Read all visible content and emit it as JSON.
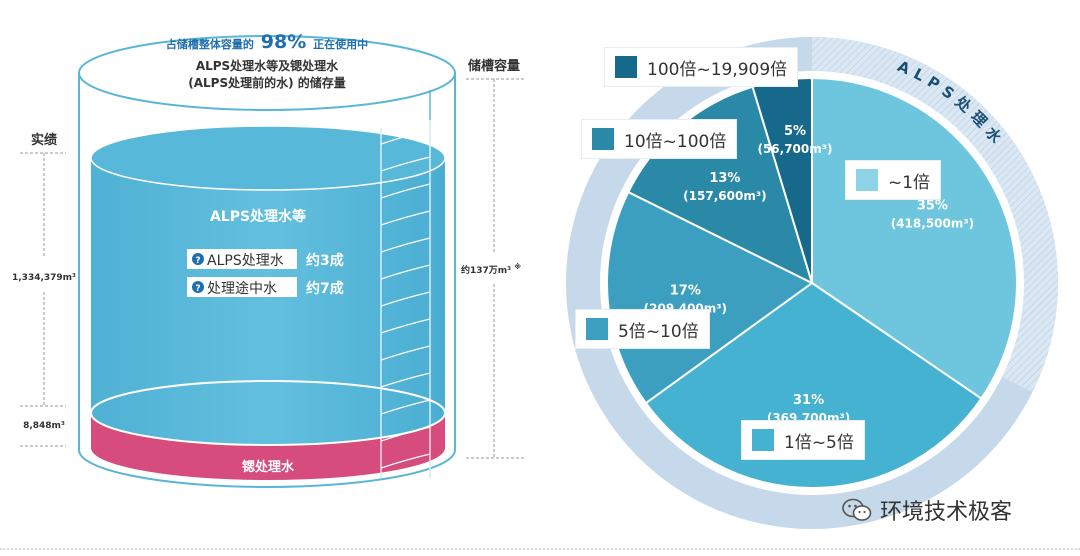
{
  "tank": {
    "header_line1_prefix": "占储槽整体容量的",
    "header_percent": "98%",
    "header_line1_suffix": "正在使用中",
    "header_line2": "ALPS处理水等及锶处理水",
    "header_line3": "(ALPS处理前的水) 的储存量",
    "capacity_label": "储槽容量",
    "capacity_value": "约137万m³",
    "capacity_note": "※",
    "actual_label": "实绩",
    "alps_volume": "1,334,379m³",
    "strontium_volume": "8,848m³",
    "water_title": "ALPS处理水等",
    "items": [
      {
        "label": "ALPS处理水",
        "amount": "约3成"
      },
      {
        "label": "处理途中水",
        "amount": "约7成"
      }
    ],
    "strontium_label": "锶处理水"
  },
  "chart_data": {
    "type": "pie",
    "title": "",
    "ring_label": "ALPS处理水",
    "slices": [
      {
        "legend": "~1倍",
        "percent": "35%",
        "volume": "(418,500m³)",
        "value": 418500,
        "color": "#6ec6de"
      },
      {
        "legend": "1倍~5倍",
        "percent": "31%",
        "volume": "(369,700m³)",
        "value": 369700,
        "color": "#45b2d2"
      },
      {
        "legend": "5倍~10倍",
        "percent": "17%",
        "volume": "(209,400m³)",
        "value": 209400,
        "color": "#3c9fbf"
      },
      {
        "legend": "10倍~100倍",
        "percent": "13%",
        "volume": "(157,600m³)",
        "value": 157600,
        "color": "#2b89a8"
      },
      {
        "legend": "100倍~19,909倍",
        "percent": "5%",
        "volume": "(56,700m³)",
        "value": 56700,
        "color": "#16698a"
      }
    ]
  },
  "colors": {
    "water": "#56b6d8",
    "strontium": "#d64c7c",
    "ring_light": "#c9dcec",
    "ring_hatch": "#dce9f2",
    "badge": "#1f6fb0"
  },
  "watermark": {
    "text": "环境技术极客",
    "icon": "wechat-icon"
  }
}
